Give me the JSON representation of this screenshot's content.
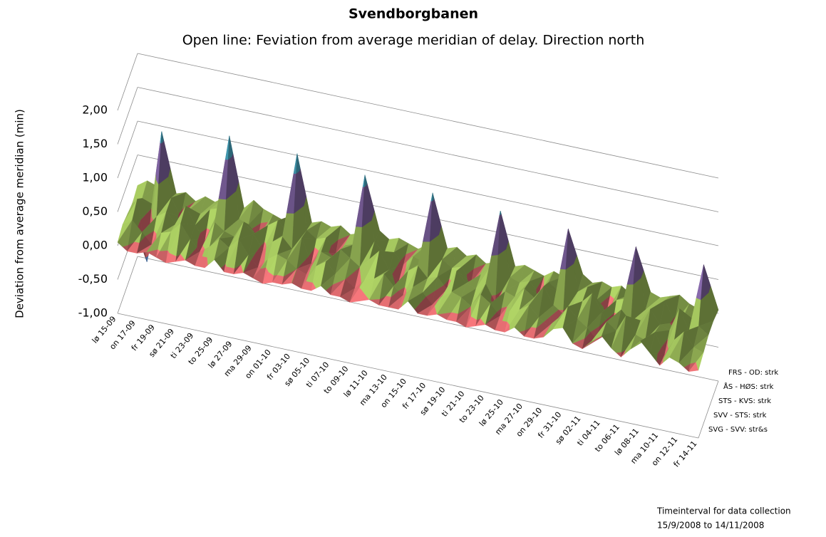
{
  "chart_data": {
    "type": "surface3d",
    "title": "Svendborgbanen",
    "subtitle": "Open line: Feviation from average meridian of delay. Direction north",
    "y_label": "Deviation from average meridian (min)",
    "x_label": [
      "Timeinterval for data collection",
      "15/9/2008 to 14/11/2008"
    ],
    "categories": [
      "lø 15-09",
      null,
      "on 17-09",
      null,
      "fr 19-09",
      null,
      "sø 21-09",
      null,
      "ti 23-09",
      null,
      "to 25-09",
      null,
      "lø 27-09",
      null,
      "ma 29-09",
      null,
      "on 01-10",
      null,
      "fr 03-10",
      null,
      "sø 05-10",
      null,
      "ti 07-10",
      null,
      "to 09-10",
      null,
      "lø 11-10",
      null,
      "ma 13-10",
      null,
      "on 15-10",
      null,
      "fr 17-10",
      null,
      "sø 19-10",
      null,
      "ti 21-10",
      null,
      "to 23-10",
      null,
      "lø 25-10",
      null,
      "ma 27-10",
      null,
      "on 29-10",
      null,
      "fr 31-10",
      null,
      "sø 02-11",
      null,
      "ti 04-11",
      null,
      "to 06-11",
      null,
      "lø 08-11",
      null,
      "ma 10-11",
      null,
      "on 12-11",
      null,
      "fr 14-11"
    ],
    "series": [
      {
        "name": "SVG - SVV: str&s",
        "values": [
          0.05,
          -0.05,
          -0.05,
          0,
          -0.05,
          -0.1,
          -0.05,
          0,
          -0.05,
          -0.05,
          0.1,
          -0.05,
          -0.05,
          0,
          -0.05,
          -0.1,
          -0.05,
          -0.05,
          0,
          -0.05,
          -0.05,
          0.05,
          -0.05,
          -0.05,
          -0.1,
          -0.05,
          0,
          -0.05,
          -0.05,
          -0.05,
          0.1,
          -0.05,
          -0.05,
          0,
          -0.05,
          -0.05,
          -0.1,
          -0.05,
          0,
          -0.05,
          -0.05,
          0.05,
          -0.05,
          -0.05,
          0,
          0.15,
          0.2,
          0,
          -0.05,
          0.1,
          0.2,
          0.05,
          -0.05,
          0.1,
          0.25,
          0.1,
          -0.05,
          0.1,
          0.05,
          -0.05,
          0
        ]
      },
      {
        "name": "SVV - STS: strk",
        "values": [
          0.1,
          0.2,
          0.05,
          -0.1,
          0.1,
          0.15,
          0.3,
          0.1,
          -0.05,
          0.05,
          0.2,
          0.1,
          0.25,
          0.05,
          -0.1,
          0.05,
          0.15,
          0.1,
          0,
          -0.05,
          0.1,
          0.2,
          0.05,
          0,
          -0.1,
          0.05,
          0.1,
          0.2,
          0.05,
          -0.05,
          0.1,
          0.05,
          -0.1,
          0.05,
          0.15,
          0.1,
          0,
          0.2,
          0.1,
          -0.05,
          0.05,
          0.1,
          0.2,
          0.05,
          -0.05,
          0.1,
          0.3,
          0.15,
          0.05,
          -0.1,
          0.2,
          0.1,
          0.35,
          0.1,
          0.05,
          0.2,
          -0.1,
          0.15,
          0.3,
          0.1,
          0.05
        ]
      },
      {
        "name": "STS - KVS: strk",
        "values": [
          0.05,
          0.3,
          -0.6,
          0.1,
          0.2,
          0.05,
          0.35,
          0.1,
          -0.1,
          0.2,
          0.1,
          0.05,
          0.3,
          0.15,
          -0.05,
          0.1,
          0.2,
          0.05,
          0.25,
          -0.1,
          0.1,
          0.05,
          0.2,
          0.1,
          0,
          0.15,
          0.3,
          0.05,
          -0.1,
          0.1,
          0.2,
          0.05,
          0.1,
          -0.05,
          0.25,
          0.1,
          0.05,
          0.15,
          -0.1,
          0.1,
          0.05,
          0.2,
          0.1,
          0.3,
          0.05,
          -0.05,
          0.1,
          0.2,
          0.35,
          0.1,
          -0.15,
          0.2,
          0.05,
          0.1,
          0.3,
          0.1,
          0.05,
          0.4,
          0.1,
          0.2,
          0.1
        ]
      },
      {
        "name": "ÅS - HØS: strk",
        "values": [
          0,
          0.1,
          0.05,
          1.15,
          0.2,
          -0.05,
          0.1,
          0.05,
          0.15,
          0.2,
          1.3,
          0.1,
          0.05,
          -0.1,
          0.1,
          0.2,
          0.05,
          1.25,
          0.15,
          0.05,
          0.1,
          -0.1,
          0.05,
          0.1,
          1.15,
          0.2,
          0.05,
          0.1,
          -0.05,
          0.1,
          0.05,
          1.1,
          0.15,
          0.05,
          0.1,
          -0.1,
          0.05,
          0.2,
          1.05,
          0.1,
          0.05,
          0.1,
          -0.05,
          0.15,
          0.05,
          1.0,
          0.1,
          0.2,
          0.05,
          -0.1,
          0.1,
          0.15,
          0.95,
          0.05,
          0.1,
          0.25,
          -0.05,
          0.1,
          0.05,
          0.9,
          0.1
        ]
      },
      {
        "name": "FRS - OD: strk",
        "values": [
          0.05,
          0.15,
          0.1,
          0.2,
          0.05,
          0.1,
          0,
          0.1,
          0.05,
          0.15,
          0.1,
          0.05,
          0.2,
          0.1,
          0.05,
          0,
          0.1,
          0.15,
          0.05,
          0.1,
          0.05,
          0.1,
          0,
          0.05,
          0.1,
          0.15,
          0.05,
          0.1,
          0.05,
          0,
          0.1,
          0.05,
          0.1,
          0.15,
          0.05,
          0.1,
          0,
          0.05,
          0.1,
          0.05,
          0.1,
          0.05,
          0,
          0.1,
          0.05,
          0.1,
          0.15,
          0.05,
          0.1,
          0.05,
          0.1,
          0,
          0.05,
          0.1,
          0.05,
          0.1,
          0.15,
          0.05,
          0,
          0.05,
          0.05
        ]
      }
    ],
    "ylim": [
      -1,
      2
    ],
    "yticks": [
      {
        "value": -1,
        "label": "-1,00"
      },
      {
        "value": -0.5,
        "label": "-0,50"
      },
      {
        "value": 0,
        "label": "0,00"
      },
      {
        "value": 0.5,
        "label": "0,50"
      },
      {
        "value": 1,
        "label": "1,00"
      },
      {
        "value": 1.5,
        "label": "1,50"
      },
      {
        "value": 2,
        "label": "2,00"
      }
    ],
    "band_colors": [
      "#4f81bd",
      "#d9686c",
      "#9bbb59",
      "#8064a2",
      "#4bacc6",
      "#f79646"
    ],
    "grid": true
  }
}
